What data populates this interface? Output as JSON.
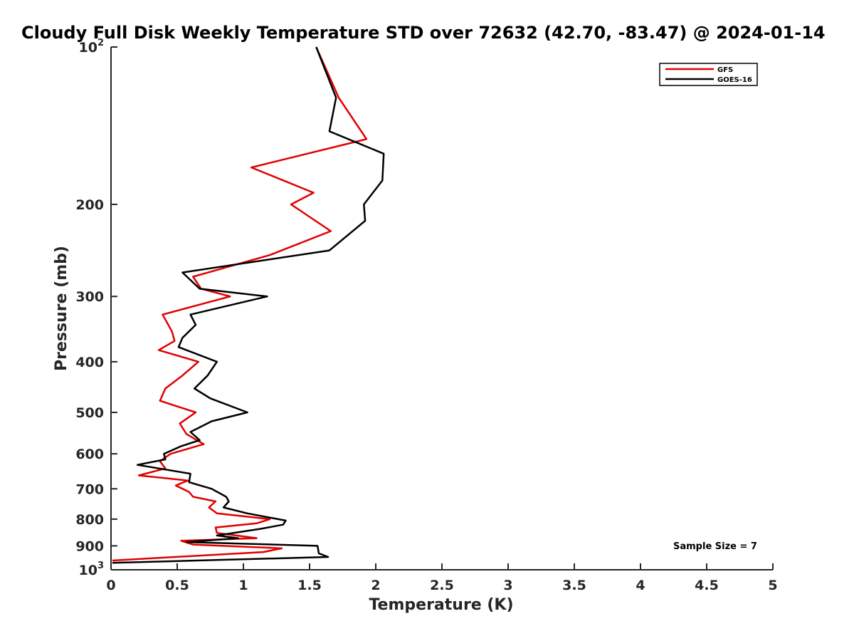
{
  "chart_data": {
    "type": "line",
    "title": "Cloudy Full Disk Weekly Temperature STD over 72632 (42.70, -83.47) @ 2024-01-14",
    "xlabel": "Temperature (K)",
    "ylabel": "Pressure (mb)",
    "xlim": [
      0,
      5
    ],
    "ylim": [
      1000,
      100
    ],
    "yscale": "log",
    "y_reversed": true,
    "grid": false,
    "legend_position": "top-right",
    "x_ticks": [
      0,
      0.5,
      1,
      1.5,
      2,
      2.5,
      3,
      3.5,
      4,
      4.5,
      5
    ],
    "x_tick_labels": [
      "0",
      "0.5",
      "1",
      "1.5",
      "2",
      "2.5",
      "3",
      "3.5",
      "4",
      "4.5",
      "5"
    ],
    "y_ticks": [
      100,
      200,
      300,
      400,
      500,
      600,
      700,
      800,
      900,
      1000
    ],
    "y_tick_labels": [
      {
        "base": "10",
        "exp": "2"
      },
      {
        "base": "200",
        "exp": ""
      },
      {
        "base": "300",
        "exp": ""
      },
      {
        "base": "400",
        "exp": ""
      },
      {
        "base": "500",
        "exp": ""
      },
      {
        "base": "600",
        "exp": ""
      },
      {
        "base": "700",
        "exp": ""
      },
      {
        "base": "800",
        "exp": ""
      },
      {
        "base": "900",
        "exp": ""
      },
      {
        "base": "10",
        "exp": "3"
      }
    ],
    "annotation": "Sample Size = 7",
    "series": [
      {
        "name": "GFS",
        "color": "#e00000",
        "points": [
          [
            1.55,
            100
          ],
          [
            1.72,
            125
          ],
          [
            1.93,
            150
          ],
          [
            1.06,
            170
          ],
          [
            1.53,
            190
          ],
          [
            1.36,
            200
          ],
          [
            1.66,
            225
          ],
          [
            1.2,
            250
          ],
          [
            0.62,
            275
          ],
          [
            0.68,
            290
          ],
          [
            0.9,
            300
          ],
          [
            0.39,
            325
          ],
          [
            0.46,
            350
          ],
          [
            0.48,
            365
          ],
          [
            0.36,
            380
          ],
          [
            0.66,
            400
          ],
          [
            0.54,
            425
          ],
          [
            0.41,
            450
          ],
          [
            0.37,
            475
          ],
          [
            0.64,
            500
          ],
          [
            0.52,
            525
          ],
          [
            0.57,
            550
          ],
          [
            0.7,
            575
          ],
          [
            0.45,
            600
          ],
          [
            0.37,
            620
          ],
          [
            0.41,
            640
          ],
          [
            0.21,
            660
          ],
          [
            0.58,
            675
          ],
          [
            0.49,
            690
          ],
          [
            0.59,
            710
          ],
          [
            0.62,
            725
          ],
          [
            0.79,
            740
          ],
          [
            0.74,
            760
          ],
          [
            0.8,
            780
          ],
          [
            1.2,
            800
          ],
          [
            1.1,
            815
          ],
          [
            0.79,
            830
          ],
          [
            0.8,
            850
          ],
          [
            1.1,
            870
          ],
          [
            0.53,
            880
          ],
          [
            0.62,
            895
          ],
          [
            1.29,
            910
          ],
          [
            1.15,
            925
          ],
          [
            0.01,
            960
          ]
        ]
      },
      {
        "name": "GOES-16",
        "color": "#000000",
        "points": [
          [
            1.55,
            100
          ],
          [
            1.7,
            125
          ],
          [
            1.65,
            145
          ],
          [
            2.06,
            160
          ],
          [
            2.05,
            180
          ],
          [
            1.91,
            200
          ],
          [
            1.92,
            215
          ],
          [
            1.65,
            245
          ],
          [
            0.54,
            270
          ],
          [
            0.67,
            290
          ],
          [
            1.18,
            300
          ],
          [
            0.6,
            325
          ],
          [
            0.64,
            340
          ],
          [
            0.54,
            360
          ],
          [
            0.51,
            375
          ],
          [
            0.8,
            400
          ],
          [
            0.73,
            425
          ],
          [
            0.63,
            450
          ],
          [
            0.75,
            470
          ],
          [
            1.03,
            500
          ],
          [
            0.76,
            520
          ],
          [
            0.6,
            545
          ],
          [
            0.67,
            565
          ],
          [
            0.53,
            580
          ],
          [
            0.4,
            600
          ],
          [
            0.41,
            615
          ],
          [
            0.2,
            630
          ],
          [
            0.6,
            655
          ],
          [
            0.59,
            680
          ],
          [
            0.76,
            700
          ],
          [
            0.87,
            725
          ],
          [
            0.89,
            740
          ],
          [
            0.85,
            760
          ],
          [
            1.03,
            780
          ],
          [
            1.32,
            805
          ],
          [
            1.3,
            820
          ],
          [
            1.13,
            835
          ],
          [
            0.8,
            860
          ],
          [
            0.96,
            870
          ],
          [
            0.57,
            885
          ],
          [
            1.56,
            900
          ],
          [
            1.57,
            930
          ],
          [
            1.64,
            945
          ],
          [
            0.01,
            970
          ]
        ]
      }
    ]
  }
}
